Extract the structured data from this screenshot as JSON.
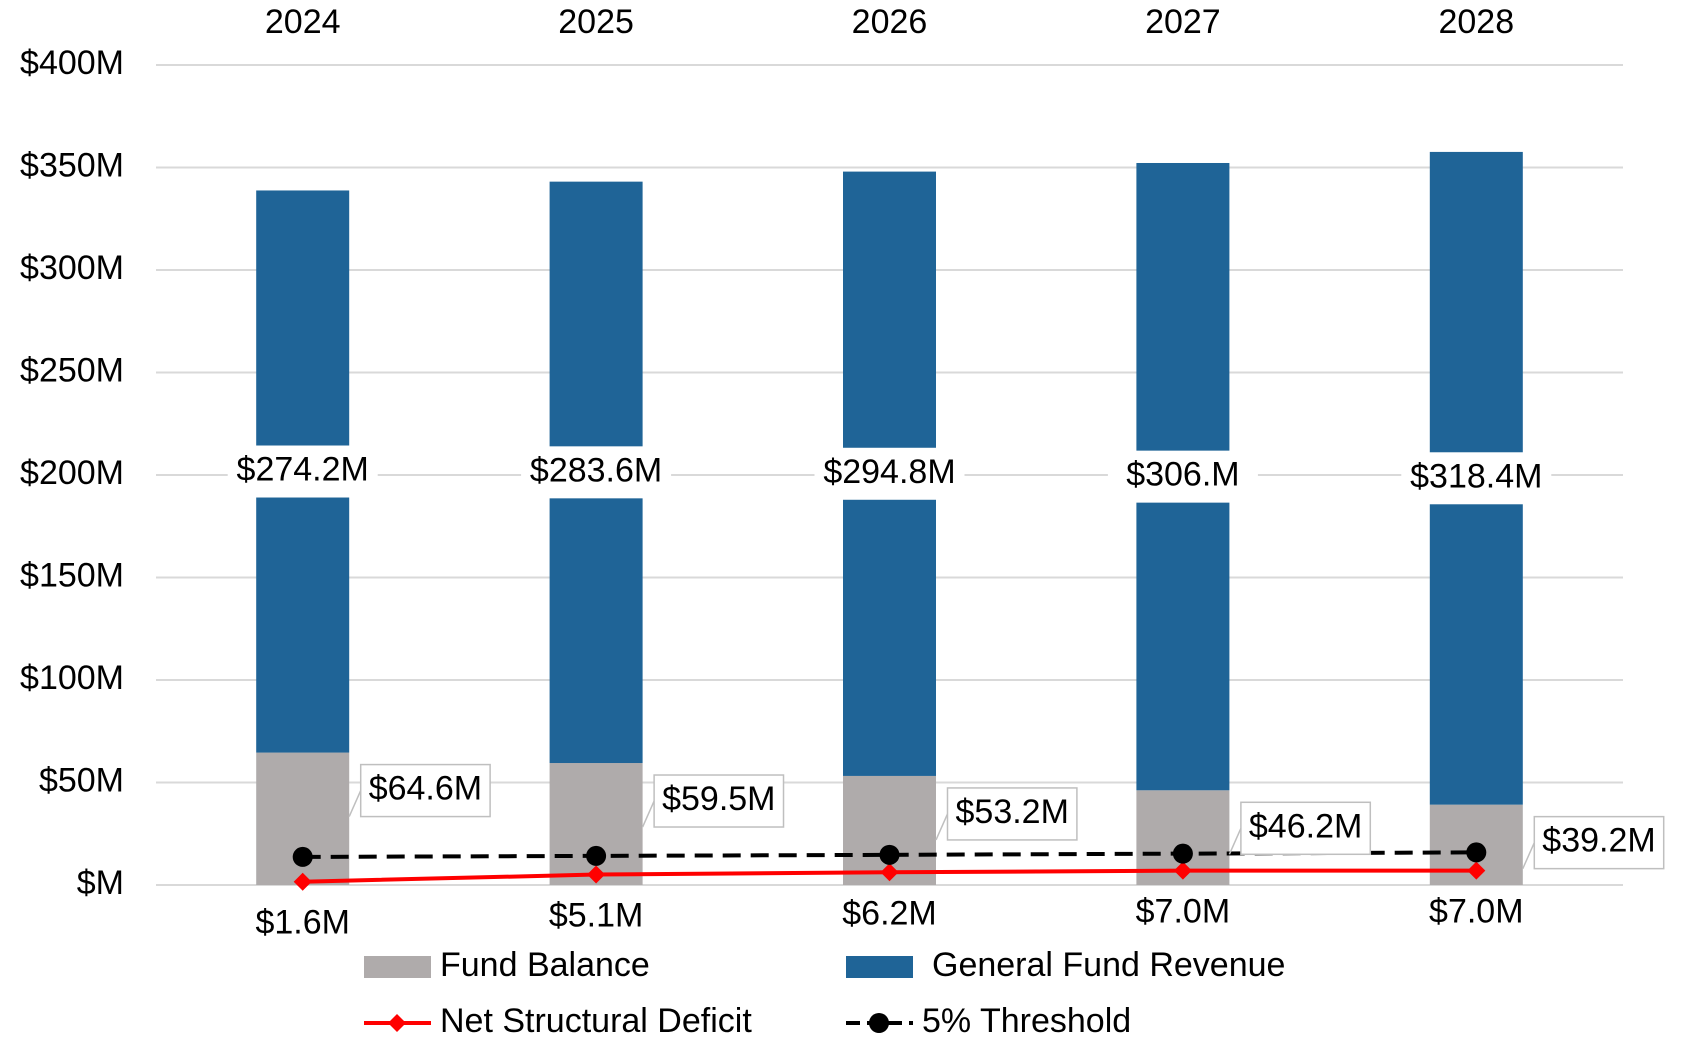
{
  "chart_data": {
    "type": "bar_line",
    "categories": [
      "2024",
      "2025",
      "2026",
      "2027",
      "2028"
    ],
    "series": [
      {
        "name": "Fund Balance",
        "type": "bar",
        "color": "#AFABAB",
        "values": [
          64.6,
          59.5,
          53.2,
          46.2,
          39.2
        ],
        "value_labels": [
          "$64.6M",
          "$59.5M",
          "$53.2M",
          "$46.2M",
          "$39.2M"
        ],
        "label_style": "callout"
      },
      {
        "name": "General Fund Revenue",
        "type": "bar",
        "color": "#1F6497",
        "values": [
          274.2,
          283.6,
          294.8,
          306,
          318.4
        ],
        "value_labels": [
          "$274.2M",
          "$283.6M",
          "$294.8M",
          "$306.M",
          "$318.4M"
        ],
        "label_style": "center"
      },
      {
        "name": "Net Structural Deficit",
        "type": "line",
        "color": "#FF0000",
        "marker": "diamond",
        "dashed": false,
        "values": [
          1.6,
          5.1,
          6.2,
          7.0,
          7.0
        ],
        "value_labels": [
          "$1.6M",
          "$5.1M",
          "$6.2M",
          "$7.0M",
          "$7.0M"
        ],
        "label_style": "below"
      },
      {
        "name": "5% Threshold",
        "type": "line",
        "color": "#000000",
        "marker": "circle",
        "dashed": true,
        "values": [
          13.7,
          14.2,
          14.7,
          15.3,
          15.9
        ]
      }
    ],
    "stacked": true,
    "ylim": [
      0,
      400
    ],
    "yticks": [
      {
        "value": 0,
        "label": "$M"
      },
      {
        "value": 50,
        "label": "$50M"
      },
      {
        "value": 100,
        "label": "$100M"
      },
      {
        "value": 150,
        "label": "$150M"
      },
      {
        "value": 200,
        "label": "$200M"
      },
      {
        "value": 250,
        "label": "$250M"
      },
      {
        "value": 300,
        "label": "$300M"
      },
      {
        "value": 350,
        "label": "$350M"
      },
      {
        "value": 400,
        "label": "$400M"
      }
    ],
    "grid": true,
    "category_axis": "top",
    "legend": "bottom"
  }
}
